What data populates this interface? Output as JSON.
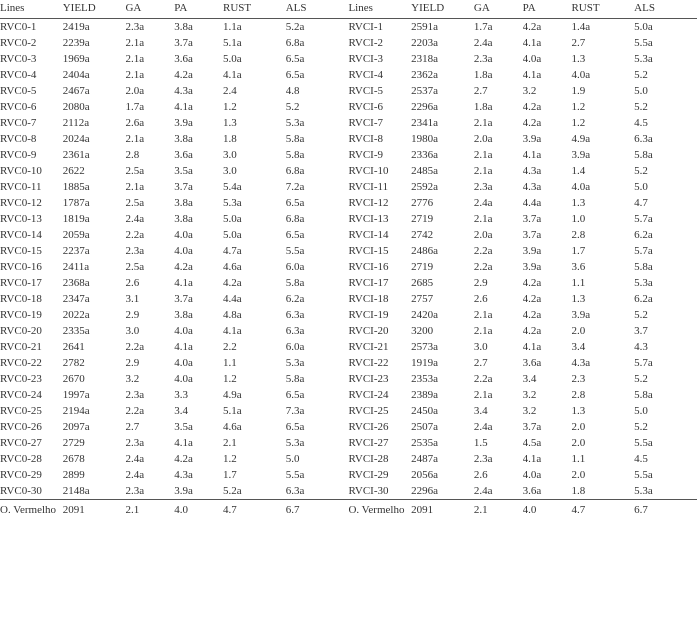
{
  "columns_left": [
    "Lines",
    "YIELD",
    "GA",
    "PA",
    "RUST",
    "ALS"
  ],
  "columns_right": [
    "Lines",
    "YIELD",
    "GA",
    "PA",
    "RUST",
    "ALS"
  ],
  "rows": [
    {
      "l": [
        "RVC0-1",
        "2419a",
        "2.3a",
        "3.8a",
        "1.1a",
        "5.2a"
      ],
      "r": [
        "RVCI-1",
        "2591a",
        "1.7a",
        "4.2a",
        "1.4a",
        "5.0a"
      ]
    },
    {
      "l": [
        "RVC0-2",
        "2239a",
        "2.1a",
        "3.7a",
        "5.1a",
        "6.8a"
      ],
      "r": [
        "RVCI-2",
        "2203a",
        "2.4a",
        "4.1a",
        "2.7",
        "5.5a"
      ]
    },
    {
      "l": [
        "RVC0-3",
        "1969a",
        "2.1a",
        "3.6a",
        "5.0a",
        "6.5a"
      ],
      "r": [
        "RVCI-3",
        "2318a",
        "2.3a",
        "4.0a",
        "1.3",
        "5.3a"
      ]
    },
    {
      "l": [
        "RVC0-4",
        "2404a",
        "2.1a",
        "4.2a",
        "4.1a",
        "6.5a"
      ],
      "r": [
        "RVCI-4",
        "2362a",
        "1.8a",
        "4.1a",
        "4.0a",
        "5.2"
      ]
    },
    {
      "l": [
        "RVC0-5",
        "2467a",
        "2.0a",
        "4.3a",
        "2.4",
        "4.8"
      ],
      "r": [
        "RVCI-5",
        "2537a",
        "2.7",
        "3.2",
        "1.9",
        "5.0"
      ]
    },
    {
      "l": [
        "RVC0-6",
        "2080a",
        "1.7a",
        "4.1a",
        "1.2",
        "5.2"
      ],
      "r": [
        "RVCI-6",
        "2296a",
        "1.8a",
        "4.2a",
        "1.2",
        "5.2"
      ]
    },
    {
      "l": [
        "RVC0-7",
        "2112a",
        "2.6a",
        "3.9a",
        "1.3",
        "5.3a"
      ],
      "r": [
        "RVCI-7",
        "2341a",
        "2.1a",
        "4.2a",
        "1.2",
        "4.5"
      ]
    },
    {
      "l": [
        "RVC0-8",
        "2024a",
        "2.1a",
        "3.8a",
        "1.8",
        "5.8a"
      ],
      "r": [
        "RVCI-8",
        "1980a",
        "2.0a",
        "3.9a",
        "4.9a",
        "6.3a"
      ]
    },
    {
      "l": [
        "RVC0-9",
        "2361a",
        "2.8",
        "3.6a",
        "3.0",
        "5.8a"
      ],
      "r": [
        "RVCI-9",
        "2336a",
        "2.1a",
        "4.1a",
        "3.9a",
        "5.8a"
      ]
    },
    {
      "l": [
        "RVC0-10",
        "2622",
        "2.5a",
        "3.5a",
        "3.0",
        "6.8a"
      ],
      "r": [
        "RVCI-10",
        "2485a",
        "2.1a",
        "4.3a",
        "1.4",
        "5.2"
      ]
    },
    {
      "l": [
        "RVC0-11",
        "1885a",
        "2.1a",
        "3.7a",
        "5.4a",
        "7.2a"
      ],
      "r": [
        "RVCI-11",
        "2592a",
        "2.3a",
        "4.3a",
        "4.0a",
        "5.0"
      ]
    },
    {
      "l": [
        "RVC0-12",
        "1787a",
        "2.5a",
        "3.8a",
        "5.3a",
        "6.5a"
      ],
      "r": [
        "RVCI-12",
        "2776",
        "2.4a",
        "4.4a",
        "1.3",
        "4.7"
      ]
    },
    {
      "l": [
        "RVC0-13",
        "1819a",
        "2.4a",
        "3.8a",
        "5.0a",
        "6.8a"
      ],
      "r": [
        "RVCI-13",
        "2719",
        "2.1a",
        "3.7a",
        "1.0",
        "5.7a"
      ]
    },
    {
      "l": [
        "RVC0-14",
        "2059a",
        "2.2a",
        "4.0a",
        "5.0a",
        "6.5a"
      ],
      "r": [
        "RVCI-14",
        "2742",
        "2.0a",
        "3.7a",
        "2.8",
        "6.2a"
      ]
    },
    {
      "l": [
        "RVC0-15",
        "2237a",
        "2.3a",
        "4.0a",
        "4.7a",
        "5.5a"
      ],
      "r": [
        "RVCI-15",
        "2486a",
        "2.2a",
        "3.9a",
        "1.7",
        "5.7a"
      ]
    },
    {
      "l": [
        "RVC0-16",
        "2411a",
        "2.5a",
        "4.2a",
        "4.6a",
        "6.0a"
      ],
      "r": [
        "RVCI-16",
        "2719",
        "2.2a",
        "3.9a",
        "3.6",
        "5.8a"
      ]
    },
    {
      "l": [
        "RVC0-17",
        "2368a",
        "2.6",
        "4.1a",
        "4.2a",
        "5.8a"
      ],
      "r": [
        "RVCI-17",
        "2685",
        "2.9",
        "4.2a",
        "1.1",
        "5.3a"
      ]
    },
    {
      "l": [
        "RVC0-18",
        "2347a",
        "3.1",
        "3.7a",
        "4.4a",
        "6.2a"
      ],
      "r": [
        "RVCI-18",
        "2757",
        "2.6",
        "4.2a",
        "1.3",
        "6.2a"
      ]
    },
    {
      "l": [
        "RVC0-19",
        "2022a",
        "2.9",
        "3.8a",
        "4.8a",
        "6.3a"
      ],
      "r": [
        "RVCI-19",
        "2420a",
        "2.1a",
        "4.2a",
        "3.9a",
        "5.2"
      ]
    },
    {
      "l": [
        "RVC0-20",
        "2335a",
        "3.0",
        "4.0a",
        "4.1a",
        "6.3a"
      ],
      "r": [
        "RVCI-20",
        "3200",
        "2.1a",
        "4.2a",
        "2.0",
        "3.7"
      ]
    },
    {
      "l": [
        "RVC0-21",
        "2641",
        "2.2a",
        "4.1a",
        "2.2",
        "6.0a"
      ],
      "r": [
        "RVCI-21",
        "2573a",
        "3.0",
        "4.1a",
        "3.4",
        "4.3"
      ]
    },
    {
      "l": [
        "RVC0-22",
        "2782",
        "2.9",
        "4.0a",
        "1.1",
        "5.3a"
      ],
      "r": [
        "RVCI-22",
        "1919a",
        "2.7",
        "3.6a",
        "4.3a",
        "5.7a"
      ]
    },
    {
      "l": [
        "RVC0-23",
        "2670",
        "3.2",
        "4.0a",
        "1.2",
        "5.8a"
      ],
      "r": [
        "RVCI-23",
        "2353a",
        "2.2a",
        "3.4",
        "2.3",
        "5.2"
      ]
    },
    {
      "l": [
        "RVC0-24",
        "1997a",
        "2.3a",
        "3.3",
        "4.9a",
        "6.5a"
      ],
      "r": [
        "RVCI-24",
        "2389a",
        "2.1a",
        "3.2",
        "2.8",
        "5.8a"
      ]
    },
    {
      "l": [
        "RVC0-25",
        "2194a",
        "2.2a",
        "3.4",
        "5.1a",
        "7.3a"
      ],
      "r": [
        "RVCI-25",
        "2450a",
        "3.4",
        "3.2",
        "1.3",
        "5.0"
      ]
    },
    {
      "l": [
        "RVC0-26",
        "2097a",
        "2.7",
        "3.5a",
        "4.6a",
        "6.5a"
      ],
      "r": [
        "RVCI-26",
        "2507a",
        "2.4a",
        "3.7a",
        "2.0",
        "5.2"
      ]
    },
    {
      "l": [
        "RVC0-27",
        "2729",
        "2.3a",
        "4.1a",
        "2.1",
        "5.3a"
      ],
      "r": [
        "RVCI-27",
        "2535a",
        "1.5",
        "4.5a",
        "2.0",
        "5.5a"
      ]
    },
    {
      "l": [
        "RVC0-28",
        "2678",
        "2.4a",
        "4.2a",
        "1.2",
        "5.0"
      ],
      "r": [
        "RVCI-28",
        "2487a",
        "2.3a",
        "4.1a",
        "1.1",
        "4.5"
      ]
    },
    {
      "l": [
        "RVC0-29",
        "2899",
        "2.4a",
        "4.3a",
        "1.7",
        "5.5a"
      ],
      "r": [
        "RVCI-29",
        "2056a",
        "2.6",
        "4.0a",
        "2.0",
        "5.5a"
      ]
    },
    {
      "l": [
        "RVC0-30",
        "2148a",
        "2.3a",
        "3.9a",
        "5.2a",
        "6.3a"
      ],
      "r": [
        "RVCI-30",
        "2296a",
        "2.4a",
        "3.6a",
        "1.8",
        "5.3a"
      ]
    }
  ],
  "footer": {
    "l": [
      "O. Vermelho",
      "2091",
      "2.1",
      "4.0",
      "4.7",
      "6.7"
    ],
    "r": [
      "O. Vermelho",
      "2091",
      "2.1",
      "4.0",
      "4.7",
      "6.7"
    ]
  }
}
